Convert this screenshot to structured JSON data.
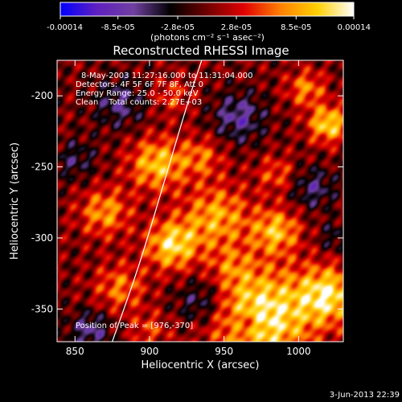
{
  "chart_data": {
    "type": "heatmap",
    "title": "Reconstructed RHESSI Image",
    "xlabel": "Heliocentric X (arcsec)",
    "ylabel": "Heliocentric Y (arcsec)",
    "xlim": [
      838,
      1030
    ],
    "ylim": [
      -373,
      -175
    ],
    "x_ticks": [
      850,
      900,
      950,
      1000
    ],
    "y_ticks": [
      -350,
      -300,
      -250,
      -200
    ],
    "colorbar": {
      "min": -0.00014,
      "max": 0.00014,
      "ticks": [
        -0.00014,
        -8.5e-05,
        -2.8e-05,
        2.8e-05,
        8.5e-05,
        0.00014
      ],
      "tick_labels": [
        "-0.00014",
        "-8.5e-05",
        "-2.8e-05",
        "2.8e-05",
        "8.5e-05",
        "0.00014"
      ],
      "unit_label": "(photons cm⁻² s⁻¹ asec⁻²)",
      "colors": [
        "#0000ff",
        "#6020c0",
        "#7040a0",
        "#000000",
        "#700000",
        "#e00000",
        "#ff8000",
        "#ffd000",
        "#ffffff"
      ]
    },
    "annotations": [
      "8-May-2003 11:27:16.000 to 11:31:04.000",
      "Detectors: 4F 5F 6F 7F 8F, Att 0",
      "Energy Range: 25.0 - 50.0 keV",
      "Clean    Total counts: 2.27E+03"
    ],
    "peak_label": "Position of Peak = [976,-370]",
    "peak": [
      976,
      -370
    ],
    "limb_curve": [
      [
        875,
        -373
      ],
      [
        893,
        -320
      ],
      [
        910,
        -260
      ],
      [
        927,
        -200
      ],
      [
        935,
        -175
      ]
    ],
    "sources": [
      [
        975,
        -355,
        24,
        1.0
      ],
      [
        1020,
        -340,
        14,
        0.85
      ],
      [
        915,
        -305,
        12,
        0.85
      ],
      [
        945,
        -285,
        16,
        0.65
      ],
      [
        870,
        -282,
        12,
        0.6
      ],
      [
        880,
        -335,
        12,
        0.5
      ],
      [
        905,
        -248,
        13,
        0.75
      ],
      [
        935,
        -243,
        10,
        0.45
      ],
      [
        985,
        -295,
        11,
        0.7
      ],
      [
        1020,
        -220,
        9,
        0.85
      ],
      [
        1005,
        -195,
        9,
        0.55
      ],
      [
        985,
        -255,
        9,
        0.4
      ],
      [
        915,
        -200,
        9,
        0.35
      ],
      [
        955,
        -320,
        10,
        0.3
      ],
      [
        900,
        -365,
        9,
        0.35
      ],
      [
        860,
        -365,
        10,
        -0.5
      ],
      [
        960,
        -215,
        12,
        -0.55
      ],
      [
        935,
        -345,
        12,
        -0.5
      ],
      [
        1010,
        -265,
        10,
        -0.45
      ],
      [
        850,
        -245,
        10,
        -0.35
      ],
      [
        880,
        -205,
        12,
        -0.45
      ],
      [
        965,
        -360,
        7,
        -0.4
      ],
      [
        1025,
        -300,
        8,
        -0.3
      ]
    ]
  },
  "footer": {
    "date": "3-Jun-2013 22:39"
  }
}
